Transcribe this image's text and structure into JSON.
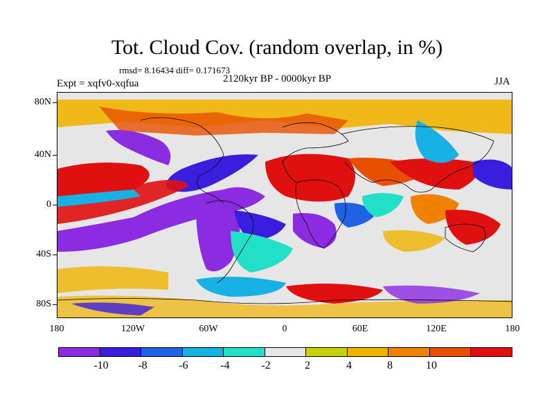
{
  "title": "Tot. Cloud Cov. (random overlap, in %)",
  "stats": "rmsd= 8.16434 diff= 0.171673",
  "experiment": "Expt = xqfv0-xqfua",
  "period": "2120kyr BP - 0000kyr BP",
  "season": "JJA",
  "axes": {
    "y_ticks": [
      "80N",
      "40N",
      "0",
      "40S",
      "80S"
    ],
    "x_ticks": [
      "180",
      "120W",
      "60W",
      "0",
      "60E",
      "120E",
      "180"
    ]
  },
  "colorbar": {
    "colors": [
      "#8b2be2",
      "#3a1ee0",
      "#1f62e6",
      "#17b1e6",
      "#22e0c8",
      "#e6e6e6",
      "#c8d20a",
      "#f0b400",
      "#f08200",
      "#e85000",
      "#e01010"
    ],
    "labels": [
      "-10",
      "-8",
      "-6",
      "-4",
      "-2",
      "2",
      "4",
      "8",
      "10"
    ]
  }
}
